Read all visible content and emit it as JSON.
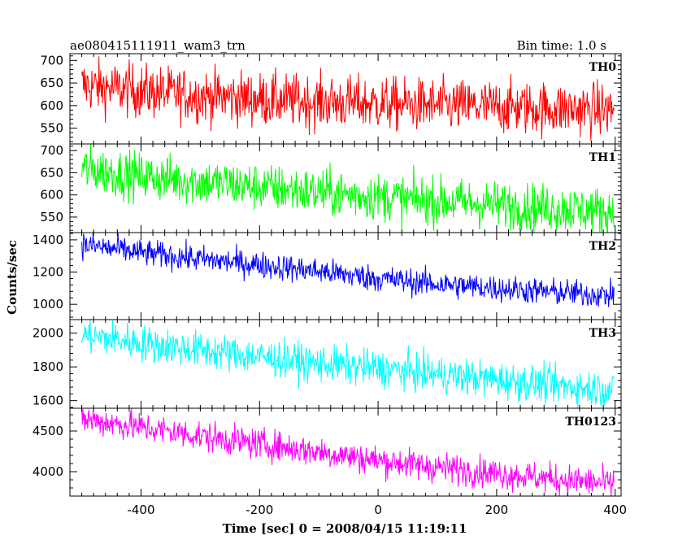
{
  "chart_data": {
    "type": "line",
    "title": "ae080415111911_wam3_trn",
    "bin_time_label": "Bin time: 1.0 s",
    "xlabel": "Time [sec] 0 = 2008/04/15 11:19:11",
    "ylabel": "Counts/sec",
    "xlim": [
      -520,
      410
    ],
    "x_ticks": [
      -400,
      -200,
      0,
      200,
      400
    ],
    "x_step": 1.0,
    "x_start": -500,
    "x_end": 398,
    "grid": false,
    "panels": [
      {
        "name": "TH0",
        "color": "#ff0000",
        "ylim": [
          515,
          715
        ],
        "y_ticks": [
          550,
          600,
          650,
          700
        ],
        "trend_x": [
          -500,
          -400,
          -300,
          -200,
          -100,
          0,
          100,
          200,
          300,
          398
        ],
        "trend_y": [
          645,
          632,
          622,
          614,
          608,
          604,
          600,
          597,
          593,
          590
        ],
        "noise": 30
      },
      {
        "name": "TH1",
        "color": "#00ff00",
        "ylim": [
          515,
          715
        ],
        "y_ticks": [
          550,
          600,
          650,
          700
        ],
        "trend_x": [
          -500,
          -400,
          -300,
          -200,
          -100,
          0,
          100,
          200,
          300,
          398
        ],
        "trend_y": [
          660,
          642,
          630,
          618,
          606,
          596,
          586,
          578,
          570,
          562
        ],
        "noise": 27
      },
      {
        "name": "TH2",
        "color": "#0000ff",
        "ylim": [
          905,
          1445
        ],
        "y_ticks": [
          1000,
          1200,
          1400
        ],
        "trend_x": [
          -500,
          -400,
          -300,
          -200,
          -100,
          0,
          100,
          200,
          300,
          398
        ],
        "trend_y": [
          1370,
          1320,
          1280,
          1245,
          1205,
          1160,
          1125,
          1100,
          1075,
          1055
        ],
        "noise": 42
      },
      {
        "name": "TH3",
        "color": "#00ffff",
        "ylim": [
          1555,
          2080
        ],
        "y_ticks": [
          1600,
          1800,
          2000
        ],
        "trend_x": [
          -500,
          -400,
          -300,
          -200,
          -100,
          0,
          100,
          200,
          300,
          398
        ],
        "trend_y": [
          1990,
          1940,
          1900,
          1860,
          1820,
          1790,
          1755,
          1725,
          1690,
          1665
        ],
        "noise": 55
      },
      {
        "name": "TH0123",
        "color": "#ff00ff",
        "ylim": [
          3700,
          4780
        ],
        "y_ticks": [
          4000,
          4500
        ],
        "trend_x": [
          -500,
          -400,
          -300,
          -200,
          -100,
          0,
          100,
          200,
          300,
          398
        ],
        "trend_y": [
          4650,
          4545,
          4440,
          4340,
          4245,
          4140,
          4055,
          3980,
          3910,
          3850
        ],
        "noise": 95
      }
    ]
  }
}
